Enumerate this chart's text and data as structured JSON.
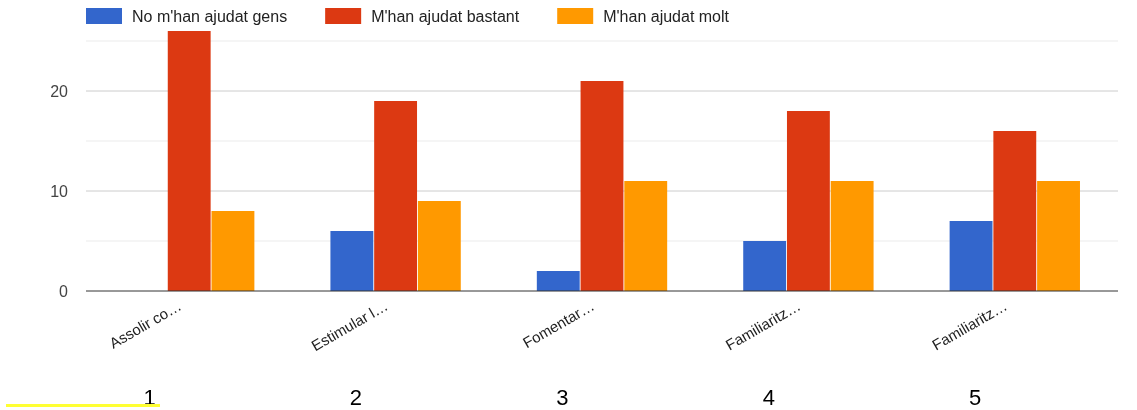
{
  "chart_data": {
    "type": "bar",
    "categories": [
      "Assolir co…",
      "Estimular l…",
      "Fomentar…",
      "Familiaritz…",
      "Familiaritz…"
    ],
    "series": [
      {
        "name": "No m'han ajudat gens",
        "color": "#3366cc",
        "values": [
          0,
          6,
          2,
          5,
          7
        ]
      },
      {
        "name": "M'han ajudat bastant",
        "color": "#dc3912",
        "values": [
          26,
          19,
          21,
          18,
          16
        ]
      },
      {
        "name": "M'han ajudat molt",
        "color": "#ff9900",
        "values": [
          8,
          9,
          11,
          11,
          11
        ]
      }
    ],
    "ylim": [
      0,
      26
    ],
    "yticks": [
      0,
      {
        "value": 5,
        "label": null
      },
      10,
      {
        "value": 15,
        "label": null
      },
      20,
      {
        "value": 25,
        "label": null
      }
    ],
    "grid": "y",
    "legend": "top left",
    "annotations": [
      "1",
      "2",
      "3",
      "4",
      "5"
    ]
  }
}
